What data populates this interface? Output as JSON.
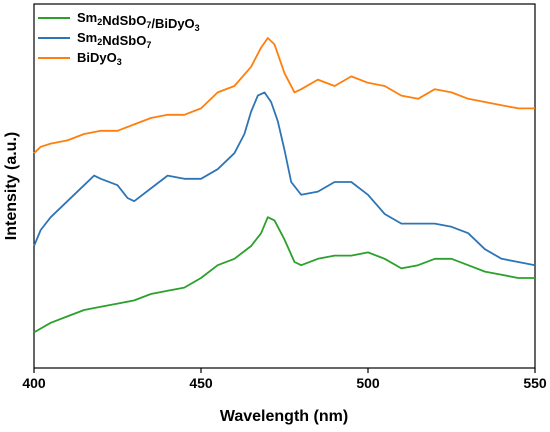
{
  "chart_data": {
    "type": "line",
    "xlabel": "Wavelength (nm)",
    "ylabel": "Intensity (a.u.)",
    "xlim": [
      400,
      550
    ],
    "ylim": [
      0,
      1
    ],
    "xticks": [
      400,
      450,
      500,
      550
    ],
    "yticks_shown": false,
    "grid": false,
    "legend_placement": "top-left",
    "series": [
      {
        "name": "Sm2NdSbO7/BiDyO3",
        "legend": {
          "parts": [
            [
              "Sm",
              ""
            ],
            [
              "2",
              "sub"
            ],
            [
              "NdSbO",
              ""
            ],
            [
              "7",
              "sub"
            ],
            [
              "/BiDyO",
              ""
            ],
            [
              "3",
              "sub"
            ]
          ]
        },
        "color": "#2ca02c",
        "x": [
          400,
          405,
          410,
          415,
          420,
          425,
          430,
          435,
          440,
          445,
          450,
          455,
          460,
          465,
          468,
          470,
          472,
          475,
          478,
          480,
          485,
          490,
          495,
          500,
          505,
          510,
          515,
          520,
          525,
          530,
          535,
          540,
          545,
          550
        ],
        "y": [
          0.03,
          0.06,
          0.08,
          0.1,
          0.11,
          0.12,
          0.13,
          0.15,
          0.16,
          0.17,
          0.2,
          0.24,
          0.26,
          0.3,
          0.34,
          0.39,
          0.38,
          0.32,
          0.25,
          0.24,
          0.26,
          0.27,
          0.27,
          0.28,
          0.26,
          0.23,
          0.24,
          0.26,
          0.26,
          0.24,
          0.22,
          0.21,
          0.2,
          0.2
        ]
      },
      {
        "name": "Sm2NdSbO7",
        "legend": {
          "parts": [
            [
              "Sm",
              ""
            ],
            [
              "2",
              "sub"
            ],
            [
              "NdSbO",
              ""
            ],
            [
              "7",
              "sub"
            ]
          ]
        },
        "color": "#2e75b6",
        "x": [
          400,
          402,
          405,
          410,
          415,
          418,
          420,
          425,
          428,
          430,
          435,
          440,
          445,
          450,
          455,
          460,
          463,
          465,
          467,
          469,
          471,
          473,
          475,
          477,
          480,
          485,
          490,
          495,
          500,
          505,
          510,
          515,
          520,
          525,
          530,
          535,
          540,
          545,
          550
        ],
        "y": [
          0.3,
          0.35,
          0.39,
          0.44,
          0.49,
          0.52,
          0.51,
          0.49,
          0.45,
          0.44,
          0.48,
          0.52,
          0.51,
          0.51,
          0.54,
          0.59,
          0.65,
          0.72,
          0.77,
          0.78,
          0.75,
          0.69,
          0.6,
          0.5,
          0.46,
          0.47,
          0.5,
          0.5,
          0.46,
          0.4,
          0.37,
          0.37,
          0.37,
          0.36,
          0.34,
          0.29,
          0.26,
          0.25,
          0.24
        ]
      },
      {
        "name": "BiDyO3",
        "legend": {
          "parts": [
            [
              "BiDyO",
              ""
            ],
            [
              "3",
              "sub"
            ]
          ]
        },
        "color": "#ff7f0e",
        "x": [
          400,
          402,
          405,
          410,
          415,
          420,
          425,
          430,
          435,
          440,
          445,
          450,
          455,
          460,
          465,
          468,
          470,
          472,
          475,
          478,
          480,
          485,
          490,
          495,
          500,
          505,
          510,
          515,
          520,
          525,
          530,
          535,
          540,
          545,
          550
        ],
        "y": [
          0.59,
          0.61,
          0.62,
          0.63,
          0.65,
          0.66,
          0.66,
          0.68,
          0.7,
          0.71,
          0.71,
          0.73,
          0.78,
          0.8,
          0.86,
          0.92,
          0.95,
          0.93,
          0.84,
          0.78,
          0.79,
          0.82,
          0.8,
          0.83,
          0.81,
          0.8,
          0.77,
          0.76,
          0.79,
          0.78,
          0.76,
          0.75,
          0.74,
          0.73,
          0.73
        ]
      }
    ]
  }
}
